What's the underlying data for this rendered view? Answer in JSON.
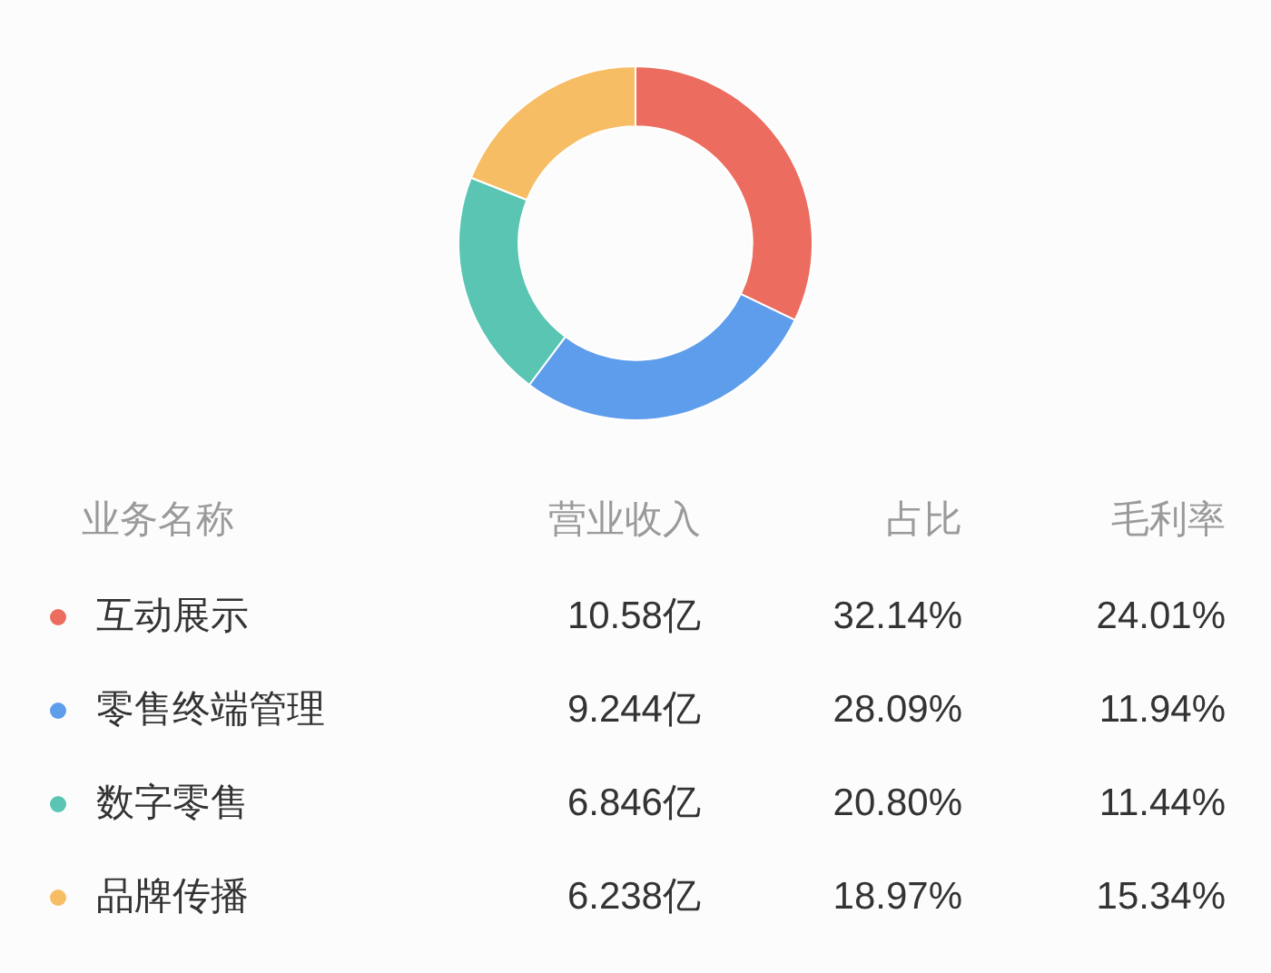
{
  "chart_data": {
    "type": "donut",
    "categories": [
      "互动展示",
      "零售终端管理",
      "数字零售",
      "品牌传播"
    ],
    "values": [
      10.58,
      9.244,
      6.846,
      6.238
    ],
    "value_labels": [
      "10.58亿",
      "9.244亿",
      "6.846亿",
      "6.238亿"
    ],
    "colors": [
      "#ec6c5f",
      "#5e9cec",
      "#5ac5b3",
      "#f6bd65"
    ],
    "legend": "bottom",
    "legend_title": "业务名称",
    "annotations": [
      "营业收入",
      "占比",
      "32.14%",
      "28.09%",
      "20.80%",
      "18.97%",
      "毛利率",
      "24.01%",
      "11.94%",
      "11.44%",
      "15.34%"
    ]
  }
}
